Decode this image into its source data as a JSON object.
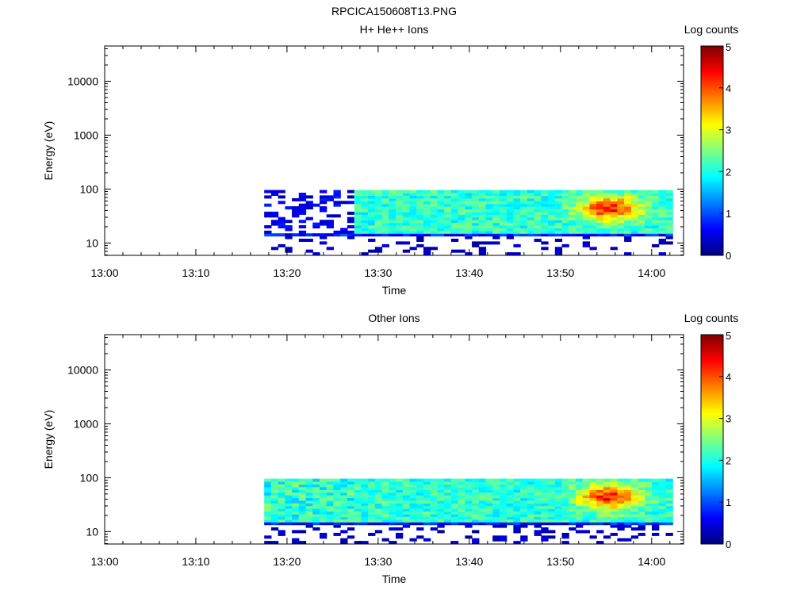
{
  "figure": {
    "title": "RPCICA150608T13.PNG"
  },
  "colors": {
    "axis": "#000000",
    "background": "#ffffff"
  },
  "chart_data": [
    {
      "type": "heatmap",
      "title": "H+ He++ Ions",
      "xlabel": "Time",
      "ylabel": "Energy (eV)",
      "x_ticks": [
        "13:00",
        "13:10",
        "13:20",
        "13:30",
        "13:40",
        "13:50",
        "14:00"
      ],
      "x_range_minutes": [
        0,
        63.5
      ],
      "y_scale": "log",
      "y_ticks": [
        "10",
        "100",
        "1000",
        "10000"
      ],
      "y_range": [
        5.9,
        45000
      ],
      "colorbar": {
        "label": "Log counts",
        "ticks": [
          "0",
          "1",
          "2",
          "3",
          "4",
          "5"
        ],
        "range": [
          0,
          5
        ],
        "colormap": "jet"
      },
      "data_time_range_minutes": [
        17.5,
        62.3
      ],
      "data_energy_range": [
        6,
        96
      ],
      "peak": {
        "time_minutes": 55,
        "energy": 50,
        "log_counts": 4.5
      }
    },
    {
      "type": "heatmap",
      "title": "Other Ions",
      "xlabel": "Time",
      "ylabel": "Energy (eV)",
      "x_ticks": [
        "13:00",
        "13:10",
        "13:20",
        "13:30",
        "13:40",
        "13:50",
        "14:00"
      ],
      "x_range_minutes": [
        0,
        63.5
      ],
      "y_scale": "log",
      "y_ticks": [
        "10",
        "100",
        "1000",
        "10000"
      ],
      "y_range": [
        5.9,
        45000
      ],
      "colorbar": {
        "label": "Log counts",
        "ticks": [
          "0",
          "1",
          "2",
          "3",
          "4",
          "5"
        ],
        "range": [
          0,
          5
        ],
        "colormap": "jet"
      },
      "data_time_range_minutes": [
        17.5,
        62.3
      ],
      "data_energy_range": [
        6,
        96
      ],
      "peak": {
        "time_minutes": 55,
        "energy": 50,
        "log_counts": 4.5
      }
    }
  ]
}
